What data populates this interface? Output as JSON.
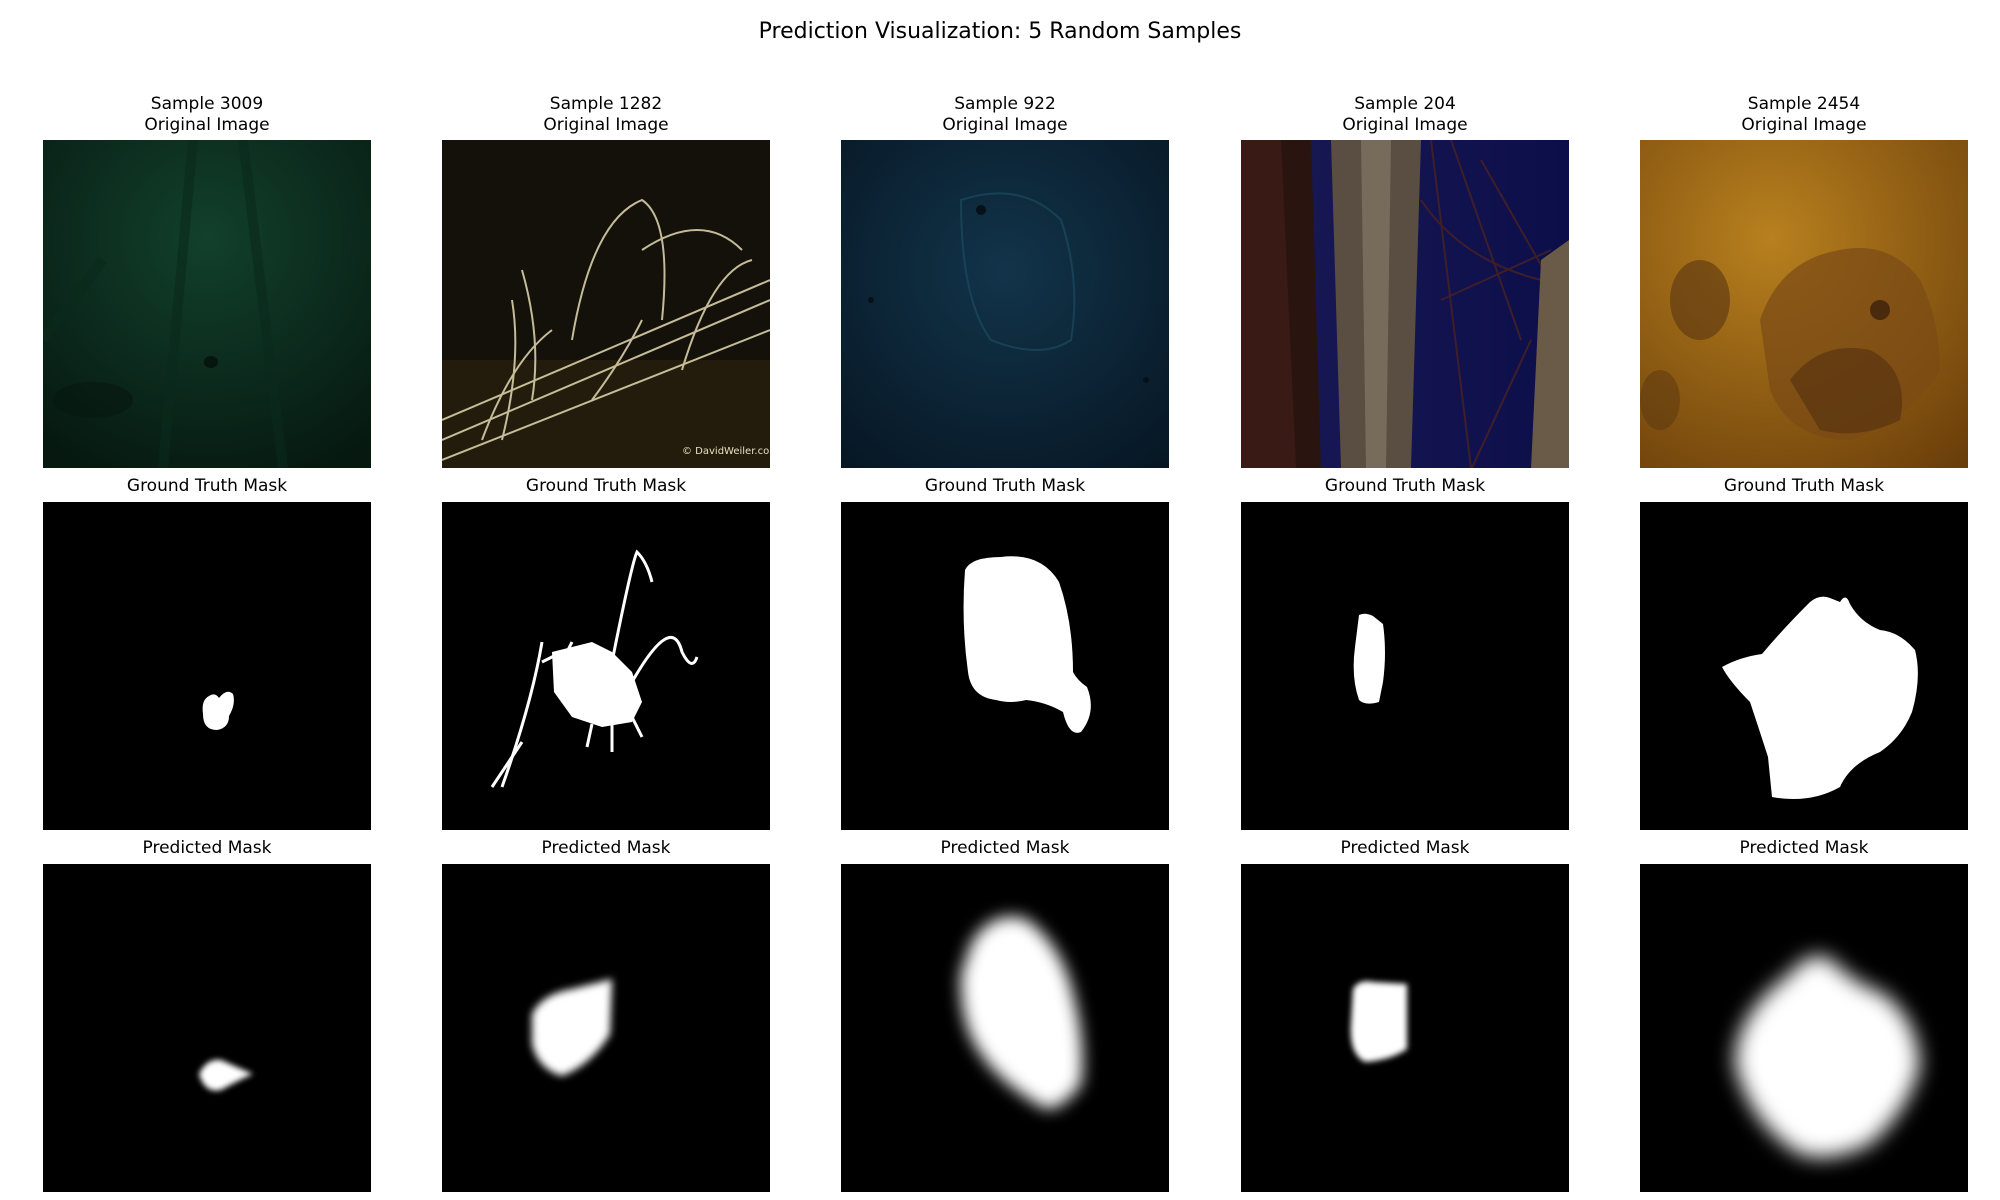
{
  "figure": {
    "title": "Prediction Visualization: 5 Random Samples"
  },
  "labels": {
    "ground_truth": "Ground Truth Mask",
    "predicted": "Predicted Mask"
  },
  "samples": [
    {
      "title": "Sample 3009\nOriginal Image",
      "scene": "dark green sandy seabed",
      "base_color": "#0c2a1e"
    },
    {
      "title": "Sample 1282\nOriginal Image",
      "scene": "pale branching strands over dark background",
      "base_color": "#15100a",
      "watermark": "© DavidWeiler.com"
    },
    {
      "title": "Sample 922\nOriginal Image",
      "scene": "dark blue speckled texture",
      "base_color": "#0c2434"
    },
    {
      "title": "Sample 204\nOriginal Image",
      "scene": "tree trunk and branches against deep blue",
      "base_color": "#0f1240"
    },
    {
      "title": "Sample 2454\nOriginal Image",
      "scene": "orange sandy seabed with camouflaged fish",
      "base_color": "#9a5f12"
    }
  ]
}
